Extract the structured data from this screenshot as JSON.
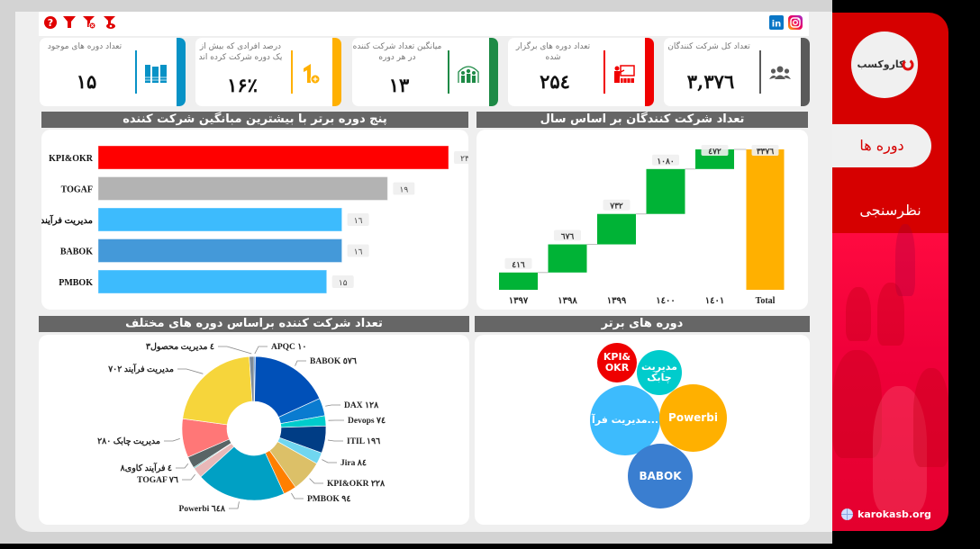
{
  "toolbar": {
    "icons": [
      "help-icon",
      "filter-icon",
      "clear-filter-icon",
      "view-filter-icon"
    ],
    "social": [
      "linkedin-icon",
      "instagram-icon"
    ]
  },
  "kpis": [
    {
      "title": "تعداد دوره های موجود",
      "value": "۱۵",
      "color": "#0892c6",
      "icon": "books-icon"
    },
    {
      "title": "درصد افرادی که بیش از یک دوره شرکت کرده اند",
      "value": "۱۶٪",
      "color": "#ffb000",
      "icon": "one-plus-icon"
    },
    {
      "title": "میانگین تعداد شرکت کننده در هر دوره",
      "value": "۱۳",
      "color": "#1e8a46",
      "icon": "group-attendees-icon"
    },
    {
      "title": "تعداد دوره های برگزار شده",
      "value": "۲۵٤",
      "color": "#f00000",
      "icon": "presentation-icon"
    },
    {
      "title": "تعداد کل شرکت کنندگان",
      "value": "۳,۳۷٦",
      "color": "#5a5a5a",
      "icon": "users-icon"
    }
  ],
  "sidebar": {
    "logo_text": "کاروکسب",
    "nav": [
      {
        "label": "دوره ها",
        "active": true
      },
      {
        "label": "نظرسنجی",
        "active": false
      }
    ],
    "website": "karokasb.org"
  },
  "panels": {
    "top_courses_title": "پنج دوره برتر با بیشترین مبانگین شرکت کننده",
    "yearly_title": "تعداد شرکت کنندگان بر اساس سال",
    "pie_title": "تعداد شرکت کننده براساس دوره های مختلف",
    "bubble_title": "دوره های برتر"
  },
  "chart_data": [
    {
      "type": "bar",
      "orientation": "horizontal",
      "title": "پنج دوره برتر با بیشترین مبانگین شرکت کننده",
      "categories": [
        "KPI&OKR",
        "TOGAF",
        "مدیریت فرآیند",
        "BABOK",
        "PMBOK"
      ],
      "values": [
        23,
        19,
        16,
        16,
        15
      ],
      "value_labels": [
        "۲۳",
        "۱۹",
        "۱٦",
        "۱٦",
        "۱۵"
      ],
      "colors": [
        "#ff0000",
        "#b3b3b3",
        "#3dbbfd",
        "#4499d9",
        "#3dbbfd"
      ],
      "xlim": [
        0,
        23
      ]
    },
    {
      "type": "bar",
      "subtype": "waterfall",
      "title": "تعداد شرکت کنندگان بر اساس سال",
      "categories": [
        "۱۳۹۷",
        "۱۳۹۸",
        "۱۳۹۹",
        "۱٤۰۰",
        "۱٤۰۱",
        "Total"
      ],
      "values": [
        416,
        676,
        732,
        1080,
        472,
        3376
      ],
      "value_labels": [
        "٤۱٦",
        "٦۷٦",
        "۷۳۲",
        "۱۰۸۰",
        "٤۷۲",
        "۳۳۷٦"
      ],
      "colors": {
        "increase": "#00b336",
        "total": "#ffb000"
      },
      "ylim": [
        0,
        3376
      ]
    },
    {
      "type": "pie",
      "donut": true,
      "title": "تعداد شرکت کننده براساس دوره های مختلف",
      "slices": [
        {
          "label": "APQC ۱۰",
          "value": 10,
          "color": "#3a86d6"
        },
        {
          "label": "BABOK ٥۷٦",
          "value": 576,
          "color": "#0050b8"
        },
        {
          "label": "DAX ۱۲۸",
          "value": 128,
          "color": "#0a7bd0"
        },
        {
          "label": "Devops ۷٤",
          "value": 74,
          "color": "#00cccc"
        },
        {
          "label": "ITIL ۱۹٦",
          "value": 196,
          "color": "#003d85"
        },
        {
          "label": "Jira ۸٤",
          "value": 84,
          "color": "#70d6f0"
        },
        {
          "label": "KPI&OKR ۲۲۸",
          "value": 228,
          "color": "#dcc068"
        },
        {
          "label": "PMBOK ۹٤",
          "value": 94,
          "color": "#ff7f00"
        },
        {
          "label": "Powerbi ٦٤۸",
          "value": 648,
          "color": "#00a0c4"
        },
        {
          "label": "TOGAF ۷٦",
          "value": 76,
          "color": "#e8b8b8"
        },
        {
          "label": "",
          "value": 8,
          "color": "#1ab0b0"
        },
        {
          "label": "۸٤ فرآیند کاوی",
          "value": 84,
          "color": "#596566"
        },
        {
          "label": "۲۸۰ مدیریت چابک",
          "value": 280,
          "color": "#ff7777"
        },
        {
          "label": "۷۰۲ مدیریت فرآیند",
          "value": 702,
          "color": "#f6d53b"
        },
        {
          "label": "۳٤ مدیریت محصول",
          "value": 34,
          "color": "#7e8c99"
        }
      ]
    },
    {
      "type": "bubble",
      "title": "دوره های برتر",
      "bubbles": [
        {
          "label": "KPI& OKR",
          "color": "#ee0000"
        },
        {
          "label": "مدیریت چابک",
          "color": "#00cccc"
        },
        {
          "label": "...مدیریت فرآ",
          "color": "#3dbbfd"
        },
        {
          "label": "Powerbi",
          "color": "#ffb000"
        },
        {
          "label": "BABOK",
          "color": "#3a7ed0"
        }
      ]
    }
  ]
}
